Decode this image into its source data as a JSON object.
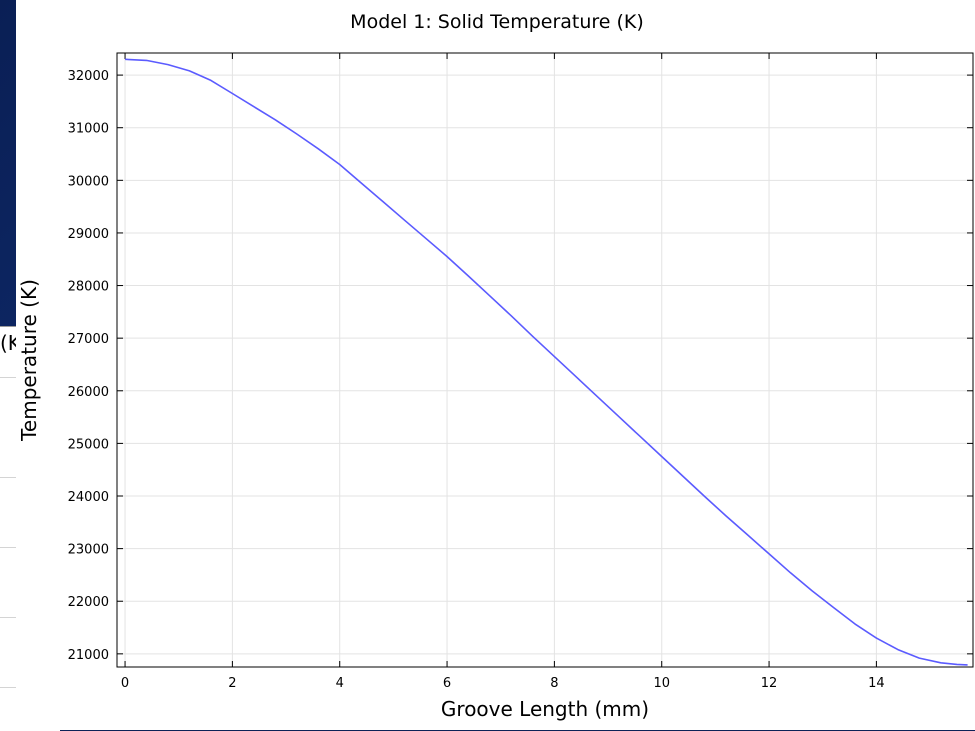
{
  "behind_window": {
    "fragment_text": "(K"
  },
  "chart_data": {
    "type": "line",
    "title": "Model 1: Solid Temperature (K)",
    "xlabel": "Groove Length (mm)",
    "ylabel": "Temperature (K)",
    "xlim": [
      -0.15,
      15.8
    ],
    "ylim": [
      20750,
      32420
    ],
    "xticks": [
      0,
      2,
      4,
      6,
      8,
      10,
      12,
      14
    ],
    "yticks": [
      21000,
      22000,
      23000,
      24000,
      25000,
      26000,
      27000,
      28000,
      29000,
      30000,
      31000,
      32000
    ],
    "grid": true,
    "series": [
      {
        "color": "#5b5bff",
        "x": [
          0,
          0.4,
          0.8,
          1.2,
          1.6,
          2.0,
          2.4,
          2.8,
          3.2,
          3.6,
          4.0,
          4.4,
          4.8,
          5.2,
          5.6,
          6.0,
          6.4,
          6.8,
          7.2,
          7.6,
          8.0,
          8.4,
          8.8,
          9.2,
          9.6,
          10.0,
          10.4,
          10.8,
          11.2,
          11.6,
          12.0,
          12.4,
          12.8,
          13.2,
          13.6,
          14.0,
          14.4,
          14.8,
          15.2,
          15.5,
          15.7
        ],
        "y": [
          32300,
          32280,
          32200,
          32080,
          31900,
          31650,
          31400,
          31150,
          30880,
          30600,
          30300,
          29950,
          29600,
          29250,
          28900,
          28550,
          28180,
          27800,
          27420,
          27030,
          26650,
          26270,
          25890,
          25510,
          25130,
          24750,
          24370,
          23990,
          23620,
          23260,
          22900,
          22540,
          22200,
          21880,
          21570,
          21300,
          21080,
          20920,
          20830,
          20800,
          20790
        ]
      }
    ]
  }
}
